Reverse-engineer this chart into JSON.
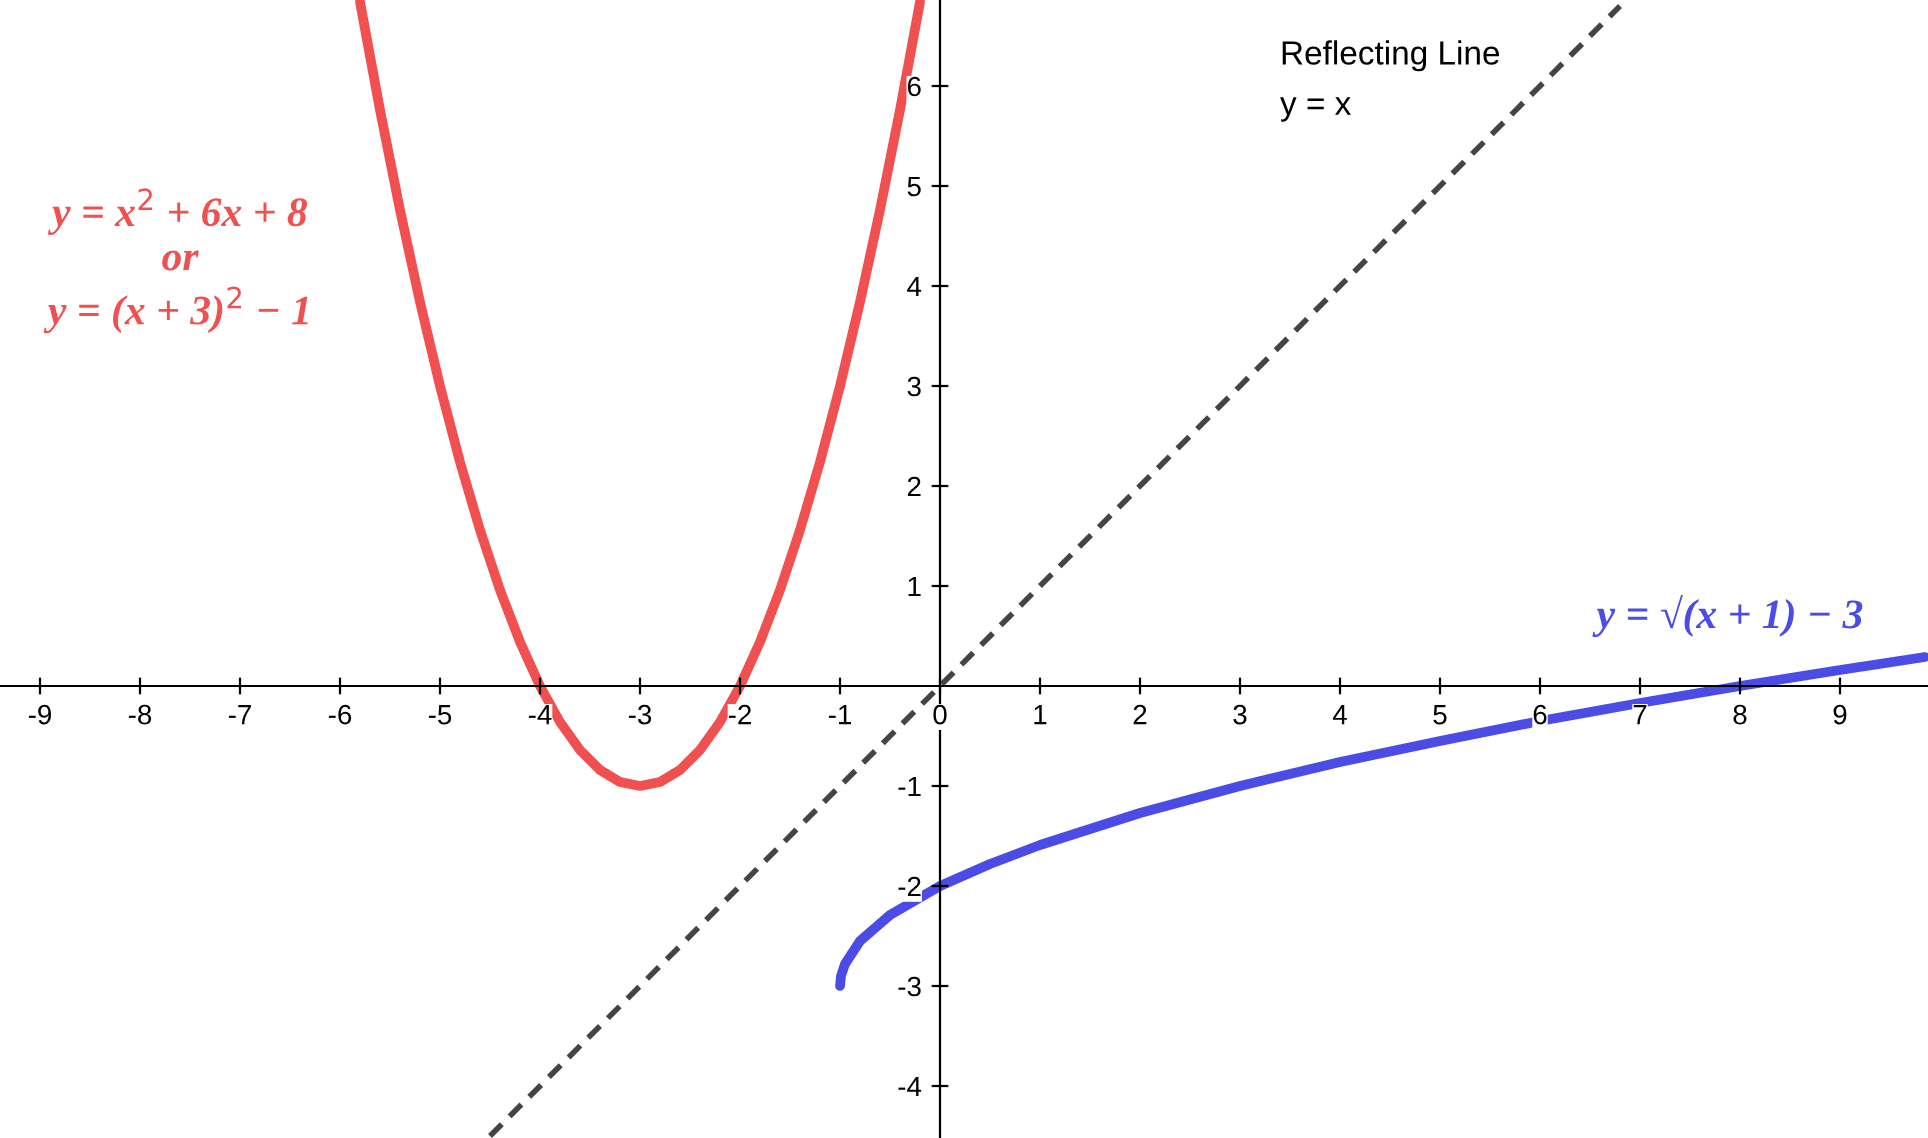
{
  "chart_data": {
    "type": "line",
    "xlim": [
      -9.4,
      9.88
    ],
    "ylim": [
      -4.52,
      6.86
    ],
    "xticks": [
      -9,
      -8,
      -7,
      -6,
      -5,
      -4,
      -3,
      -2,
      -1,
      0,
      1,
      2,
      3,
      4,
      5,
      6,
      7,
      8,
      9
    ],
    "yticks": [
      -4,
      -3,
      -2,
      -1,
      1,
      2,
      3,
      4,
      5,
      6
    ],
    "grid": false,
    "legend": false,
    "marker": "none",
    "series": [
      {
        "name": "y = x$^{2}$ + 6x + 8\nor\ny = (x + 3)$^{2}$ − 1",
        "color": "#f05050",
        "line_style": "solid",
        "x": [
          -5.8,
          -5.6,
          -5.4,
          -5.2,
          -5.0,
          -4.8,
          -4.6,
          -4.4,
          -4.2,
          -4.0,
          -3.8,
          -3.6,
          -3.4,
          -3.2,
          -3.0,
          -2.8,
          -2.6,
          -2.4,
          -2.2,
          -2.0,
          -1.8,
          -1.6,
          -1.4,
          -1.2,
          -1.0,
          -0.8,
          -0.6,
          -0.4,
          -0.2
        ],
        "values": [
          6.84,
          5.76,
          4.76,
          3.84,
          3,
          2.24,
          1.56,
          0.96,
          0.44,
          0,
          -0.36,
          -0.64,
          -0.84,
          -0.96,
          -1,
          -0.96,
          -0.84,
          -0.64,
          -0.36,
          0,
          0.44,
          0.96,
          1.56,
          2.24,
          3,
          3.84,
          4.76,
          5.76,
          6.84
        ]
      },
      {
        "name": "y = √(x + 1) − 3",
        "color": "#4b4be6",
        "line_style": "solid",
        "x": [
          -1,
          -0.99,
          -0.95,
          -0.8,
          -0.5,
          0,
          0.5,
          1,
          2,
          3,
          4,
          5,
          6,
          7,
          8,
          9,
          9.85
        ],
        "values": [
          -3,
          -2.9,
          -2.78,
          -2.55,
          -2.29,
          -2,
          -1.78,
          -1.59,
          -1.27,
          -1,
          -0.76,
          -0.55,
          -0.35,
          -0.17,
          0,
          0.16,
          0.29
        ]
      },
      {
        "name": "Reflecting Line\ny = x",
        "color": "#444444",
        "line_style": "dashed",
        "x": [
          -4.5,
          6.8
        ],
        "values": [
          -4.5,
          6.8
        ]
      }
    ]
  }
}
